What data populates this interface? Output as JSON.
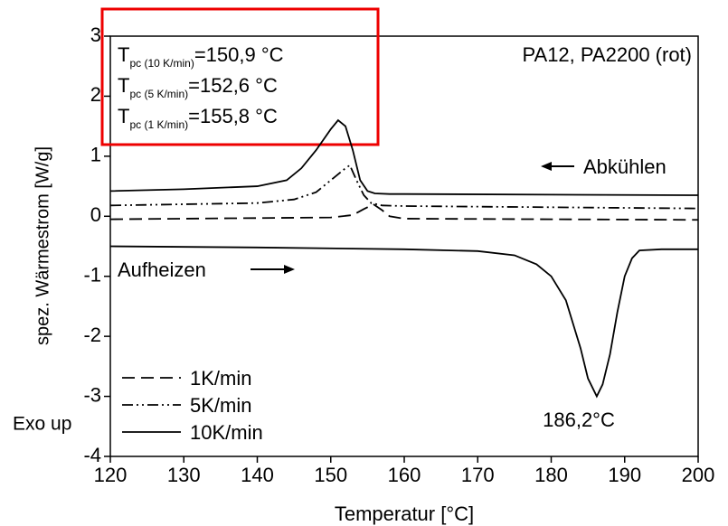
{
  "chart_data": {
    "type": "line",
    "x_label": "Temperatur [°C]",
    "y_label": "spez. Wärmestrom [W/g]",
    "xlim": [
      120,
      200
    ],
    "xticks": [
      120,
      130,
      140,
      150,
      160,
      170,
      180,
      190,
      200
    ],
    "ylim": [
      -4,
      3
    ],
    "yticks": [
      -4,
      -3,
      -2,
      -1,
      0,
      1,
      2,
      3
    ],
    "series": [
      {
        "name": "1K/min",
        "color": "#000000",
        "dash": "dashed",
        "x": [
          120,
          150,
          153,
          154.5,
          155.8,
          157,
          158,
          160,
          200
        ],
        "values": [
          -0.05,
          -0.02,
          0.02,
          0.12,
          0.2,
          0.1,
          0.0,
          -0.04,
          -0.06
        ]
      },
      {
        "name": "5K/min",
        "color": "#000000",
        "dash": "dashdot",
        "x": [
          120,
          140,
          145,
          148,
          150,
          152,
          152.6,
          153.5,
          154.5,
          155.5,
          157,
          160,
          180,
          200
        ],
        "values": [
          0.18,
          0.22,
          0.28,
          0.4,
          0.6,
          0.8,
          0.85,
          0.6,
          0.35,
          0.22,
          0.18,
          0.17,
          0.15,
          0.13
        ]
      },
      {
        "name": "10K/min",
        "color": "#000000",
        "dash": "solid",
        "x": [
          120,
          130,
          140,
          144,
          146,
          148,
          150,
          151,
          152,
          153,
          154,
          155,
          156,
          158,
          160,
          180,
          200
        ],
        "values": [
          0.42,
          0.45,
          0.5,
          0.6,
          0.8,
          1.1,
          1.45,
          1.6,
          1.5,
          1.1,
          0.6,
          0.42,
          0.38,
          0.37,
          0.37,
          0.36,
          0.35
        ]
      },
      {
        "color": "#000000",
        "dash": "solid",
        "x": [
          120,
          140,
          160,
          170,
          175,
          178,
          180,
          182,
          184,
          185,
          186.2,
          187,
          188,
          189,
          190,
          191,
          192,
          195,
          200
        ],
        "values": [
          -0.5,
          -0.52,
          -0.55,
          -0.58,
          -0.65,
          -0.8,
          -1.0,
          -1.4,
          -2.2,
          -2.7,
          -3.0,
          -2.8,
          -2.3,
          -1.6,
          -1.0,
          -0.7,
          -0.57,
          -0.55,
          -0.55
        ]
      }
    ],
    "annotations": {
      "material": "PA12, PA2200 (rot)",
      "cooling": "Abkühlen",
      "heating": "Aufheizen",
      "peak": "186,2°C",
      "exo": "Exo up",
      "tpc": [
        {
          "main": "T",
          "sub": "pc (10 K/min)",
          "value": "=150,9 °C"
        },
        {
          "main": "T",
          "sub": "pc (5 K/min)",
          "value": "=152,6 °C"
        },
        {
          "main": "T",
          "sub": "pc (1 K/min)",
          "value": "=155,8 °C"
        }
      ]
    }
  }
}
